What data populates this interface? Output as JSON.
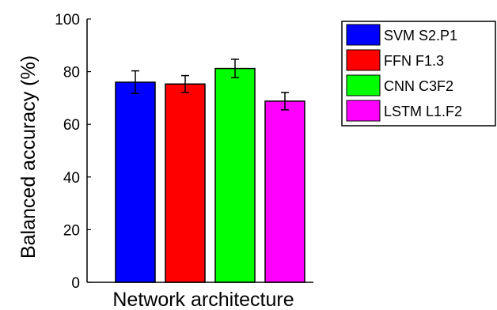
{
  "chart_data": {
    "type": "bar",
    "title": "",
    "xlabel": "Network architecture",
    "ylabel": "Balanced accuracy (%)",
    "ylim": [
      0,
      100
    ],
    "yticks": [
      0,
      20,
      40,
      60,
      80,
      100
    ],
    "grid": false,
    "legend_position": "top-right",
    "series": [
      {
        "name": "SVM S2.P1",
        "value": 76,
        "error": 4.3,
        "color": "#0000ff"
      },
      {
        "name": "FFN F1.3",
        "value": 75.3,
        "error": 3.2,
        "color": "#ff0000"
      },
      {
        "name": "CNN C3F2",
        "value": 81.2,
        "error": 3.5,
        "color": "#00ff00"
      },
      {
        "name": "LSTM L1.F2",
        "value": 68.8,
        "error": 3.3,
        "color": "#ff00ff"
      }
    ]
  }
}
